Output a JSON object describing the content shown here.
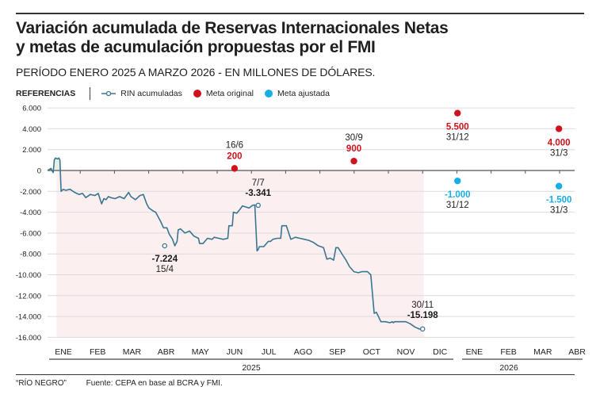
{
  "header": {
    "title_line1": "Variación acumulada de Reservas Internacionales Netas",
    "title_line2": "y metas de acumulación propuestas por el FMI",
    "subtitle": "PERÍODO ENERO 2025 A MARZO 2026 - EN MILLONES DE DÓLARES."
  },
  "legend": {
    "title": "REFERENCIAS",
    "items": [
      {
        "label": "RIN acumuladas",
        "icon": "line-marker-icon",
        "color": "#3a7691"
      },
      {
        "label": "Meta original",
        "icon": "red-dot-icon",
        "color": "#d0111b"
      },
      {
        "label": "Meta ajustada",
        "icon": "blue-dot-icon",
        "color": "#17aee8"
      }
    ]
  },
  "footer": {
    "credit": "“RÍO NEGRO”",
    "source": "Fuente: CEPA en base al BCRA y FMI."
  },
  "chart_data": {
    "type": "line",
    "title": "Variación acumulada de Reservas Internacionales Netas y metas de acumulación propuestas por el FMI",
    "subtitle": "PERÍODO ENERO 2025 A MARZO 2026 - EN MILLONES DE DÓLARES.",
    "xlabel": "",
    "ylabel": "",
    "ylim": [
      -16000,
      6000
    ],
    "yticks": [
      6000,
      4000,
      2000,
      0,
      -2000,
      -4000,
      -6000,
      -8000,
      -10000,
      -12000,
      -14000,
      -16000
    ],
    "ytick_labels": [
      "6.000",
      "4.000",
      "2.000",
      "0",
      "-2.000",
      "-4.000",
      "-6.000",
      "-8.000",
      "-10.000",
      "-12.000",
      "-14.000",
      "-16.000"
    ],
    "x_months": [
      "ENE",
      "FEB",
      "MAR",
      "ABR",
      "MAY",
      "JUN",
      "JUL",
      "AGO",
      "SEP",
      "OCT",
      "NOV",
      "DIC",
      "ENE",
      "FEB",
      "MAR",
      "ABR"
    ],
    "x_years": [
      {
        "label": "2025",
        "months": [
          0,
          11
        ]
      },
      {
        "label": "2026",
        "months": [
          12,
          15
        ]
      }
    ],
    "grid": true,
    "legend_position": "top-left",
    "series": [
      {
        "name": "RIN acumuladas",
        "color": "#3a7691",
        "x_day": [
          0,
          3,
          5,
          6,
          7,
          9,
          10,
          11,
          12,
          14,
          16,
          20,
          24,
          28,
          31,
          34,
          38,
          42,
          45,
          48,
          50,
          52,
          54,
          56,
          60,
          64,
          68,
          72,
          74,
          78,
          82,
          85,
          88,
          90,
          94,
          96,
          100,
          103,
          106,
          108,
          111,
          113,
          115,
          116,
          118,
          122,
          126,
          130,
          134,
          135,
          138,
          142,
          146,
          148,
          152,
          156,
          160,
          161,
          164,
          165,
          168,
          171,
          173,
          176,
          179,
          182,
          184,
          186,
          187,
          188,
          192,
          196,
          198,
          200,
          204,
          207,
          208,
          212,
          216,
          220,
          224,
          228,
          232,
          236,
          240,
          245,
          248,
          251,
          254,
          256,
          258,
          262,
          265,
          268,
          272,
          276,
          279,
          282,
          284,
          287,
          290,
          292,
          296,
          300,
          304,
          306,
          307,
          308,
          310,
          314,
          318,
          322,
          326,
          330,
          333,
          334
        ],
        "values": [
          0,
          200,
          -200,
          1000,
          1200,
          1100,
          1200,
          1000,
          -2000,
          -1800,
          -1900,
          -1800,
          -2100,
          -2300,
          -2200,
          -2600,
          -2300,
          -2400,
          -2200,
          -3200,
          -2700,
          -2800,
          -2500,
          -2600,
          -2700,
          -2500,
          -2700,
          -2100,
          -2500,
          -2800,
          -2400,
          -2300,
          -3200,
          -3600,
          -3900,
          -4000,
          -4800,
          -5500,
          -5500,
          -6100,
          -6600,
          -7224,
          -6800,
          -5700,
          -5600,
          -6000,
          -5800,
          -6300,
          -6500,
          -7000,
          -7000,
          -6500,
          -6600,
          -6400,
          -6500,
          -6600,
          -6500,
          -5300,
          -5300,
          -4000,
          -4100,
          -3700,
          -3400,
          -3500,
          -3600,
          -3341,
          -3300,
          -7700,
          -7600,
          -7300,
          -7300,
          -6800,
          -6800,
          -6600,
          -6500,
          -6500,
          -5300,
          -5300,
          -6600,
          -6400,
          -6500,
          -6600,
          -6700,
          -6900,
          -7200,
          -7400,
          -8500,
          -8400,
          -8600,
          -7400,
          -7400,
          -8100,
          -8600,
          -9200,
          -9700,
          -9800,
          -9700,
          -9700,
          -9700,
          -10000,
          -13700,
          -13600,
          -14500,
          -14500,
          -14600,
          -14500,
          -14600,
          -14500,
          -14500,
          -14500,
          -14500,
          -14700,
          -15000,
          -15198,
          -15198,
          -15198
        ]
      },
      {
        "name": "Meta original",
        "color": "#d0111b",
        "points": [
          {
            "date": "16/6",
            "value": 200,
            "label": "200"
          },
          {
            "date": "30/9",
            "value": 900,
            "label": "900"
          },
          {
            "date": "31/12",
            "value": 5500,
            "label": "5.500"
          },
          {
            "date": "31/3",
            "value": 4000,
            "label": "4.000"
          }
        ]
      },
      {
        "name": "Meta ajustada",
        "color": "#17aee8",
        "points": [
          {
            "date": "31/12",
            "value": -1000,
            "label": "-1.000"
          },
          {
            "date": "31/3",
            "value": -1500,
            "label": "-1.500"
          }
        ]
      }
    ],
    "annotations": [
      {
        "date": "15/4",
        "value": -7224,
        "label": "-7.224"
      },
      {
        "date": "7/7",
        "value": -3341,
        "label": "-3.341"
      },
      {
        "date": "30/11",
        "value": -15198,
        "label": "-15.198"
      }
    ],
    "shaded_region": {
      "from": "ENE 2025",
      "to": "30/11",
      "meaning": "below zero"
    }
  }
}
